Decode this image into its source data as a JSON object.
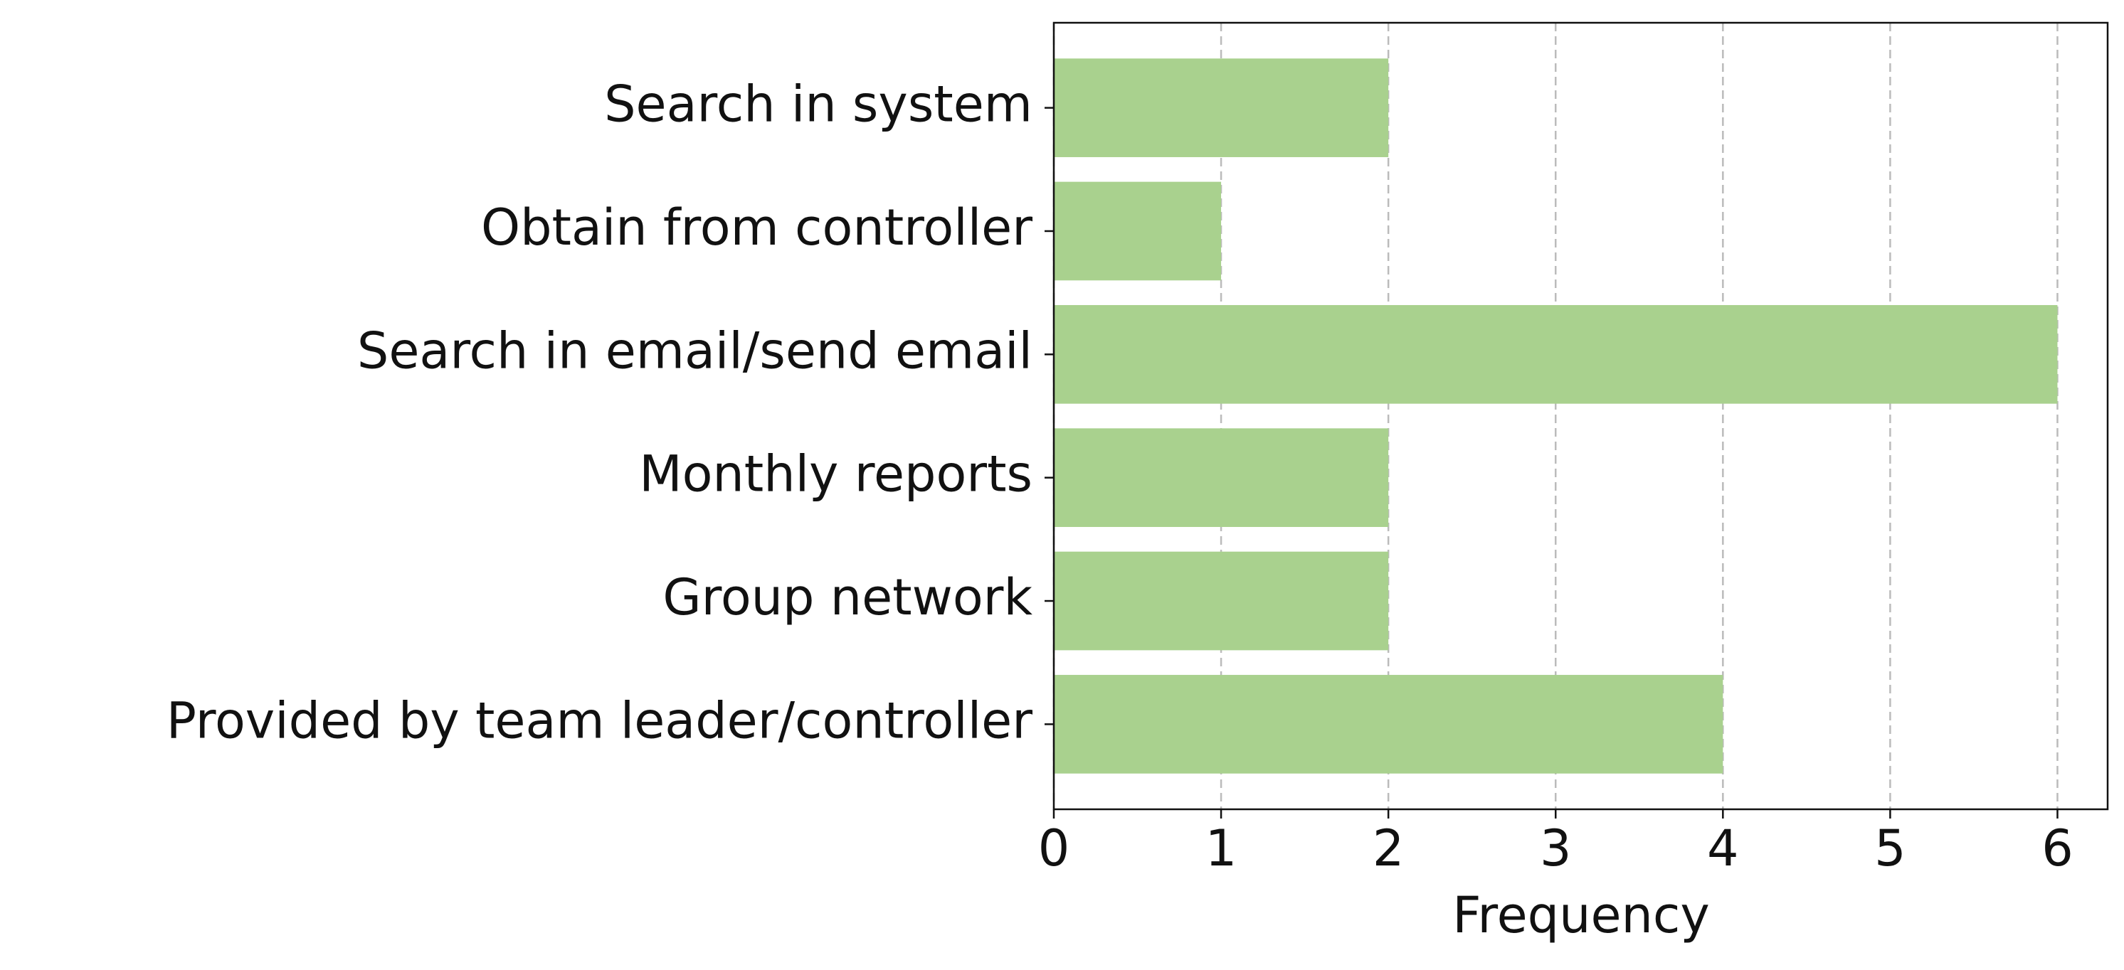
{
  "chart_data": {
    "type": "barh",
    "xlabel": "Frequency",
    "categories": [
      "Search in system",
      "Obtain from controller",
      "Search in email/send email",
      "Monthly reports",
      "Group network",
      "Provided by team leader/controller"
    ],
    "values": [
      2,
      1,
      6,
      2,
      2,
      4
    ],
    "color": "#a9d18e",
    "xlim": [
      0,
      6.3
    ],
    "xticks": [
      0,
      1,
      2,
      3,
      4,
      5,
      6
    ],
    "grid": true
  }
}
